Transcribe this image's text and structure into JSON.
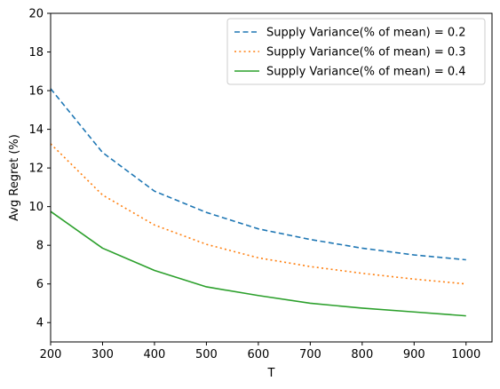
{
  "chart_data": {
    "type": "line",
    "title": "",
    "xlabel": "T",
    "ylabel": "Avg Regret (%)",
    "xlim": [
      200,
      1050
    ],
    "ylim": [
      3,
      20
    ],
    "xticks": [
      200,
      300,
      400,
      500,
      600,
      700,
      800,
      900,
      1000
    ],
    "yticks": [
      4,
      6,
      8,
      10,
      12,
      14,
      16,
      18,
      20
    ],
    "grid": false,
    "legend_position": "top-right",
    "x": [
      200,
      300,
      400,
      500,
      600,
      700,
      800,
      900,
      1000
    ],
    "series": [
      {
        "name": "Supply Variance(% of mean) = 0.2",
        "color": "#1f77b4",
        "linestyle": "dashed",
        "values": [
          16.1,
          12.8,
          10.8,
          9.7,
          8.85,
          8.3,
          7.85,
          7.5,
          7.25
        ]
      },
      {
        "name": "Supply Variance(% of mean) = 0.3",
        "color": "#ff7f0e",
        "linestyle": "dotted",
        "values": [
          13.25,
          10.6,
          9.05,
          8.05,
          7.35,
          6.9,
          6.55,
          6.25,
          6.0
        ]
      },
      {
        "name": "Supply Variance(% of mean) = 0.4",
        "color": "#2ca02c",
        "linestyle": "solid",
        "values": [
          9.75,
          7.85,
          6.7,
          5.85,
          5.4,
          5.0,
          4.75,
          4.55,
          4.35
        ]
      }
    ]
  }
}
